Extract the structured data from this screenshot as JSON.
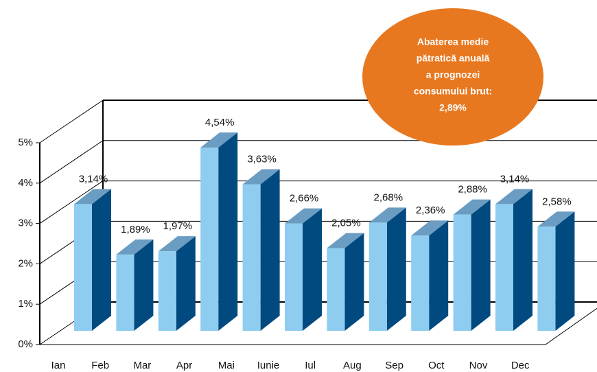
{
  "chart_data": {
    "type": "bar3d",
    "categories": [
      "Ian",
      "Feb",
      "Mar",
      "Apr",
      "Mai",
      "Iunie",
      "Iul",
      "Aug",
      "Sep",
      "Oct",
      "Nov",
      "Dec"
    ],
    "values": [
      3.14,
      1.89,
      1.97,
      4.54,
      3.63,
      2.66,
      2.05,
      2.68,
      2.36,
      2.88,
      3.14,
      2.58
    ],
    "value_labels": [
      "3,14%",
      "1,89%",
      "1,97%",
      "4,54%",
      "3,63%",
      "2,66%",
      "2,05%",
      "2,68%",
      "2,36%",
      "2,88%",
      "3,14%",
      "2,58%"
    ],
    "colors": {
      "front": "#8ecdf0",
      "side": "#004a7f",
      "top": "#6b9cc2"
    },
    "ylim": [
      0,
      5
    ],
    "yticks": [
      {
        "value": 0,
        "label": "0%"
      },
      {
        "value": 1,
        "label": "1%"
      },
      {
        "value": 2,
        "label": "2%"
      },
      {
        "value": 3,
        "label": "3%"
      },
      {
        "value": 4,
        "label": "4%"
      },
      {
        "value": 5,
        "label": "5%"
      }
    ],
    "grid": true,
    "annotation": {
      "lines": [
        "Abaterea medie",
        "pătratică anuală",
        "a prognozei",
        "consumului brut:",
        "2,89%"
      ],
      "color": "#e8781f"
    }
  }
}
